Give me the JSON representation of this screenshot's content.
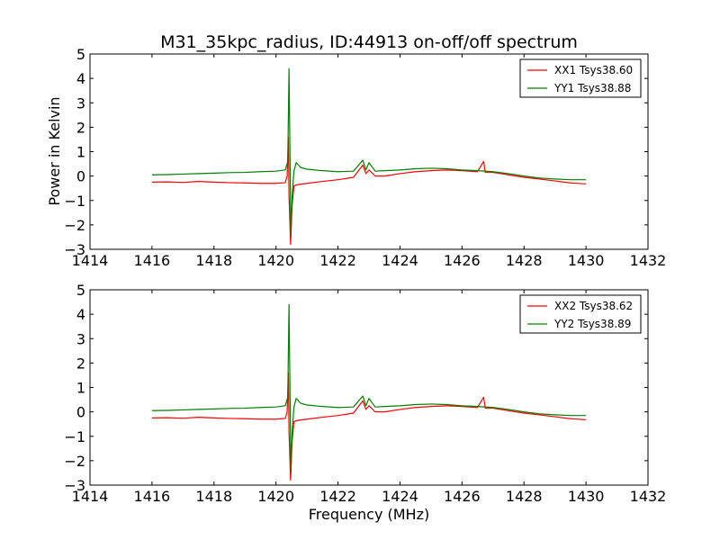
{
  "chart_data": {
    "type": "line",
    "title": "M31_35kpc_radius, ID:44913 on-off/off spectrum",
    "ylabel": "Power in Kelvin",
    "xlabel": "Frequency (MHz)",
    "xlim": [
      1414,
      1432
    ],
    "ylim": [
      -3,
      5
    ],
    "xticks": [
      "1414",
      "1416",
      "1418",
      "1420",
      "1422",
      "1424",
      "1426",
      "1428",
      "1430",
      "1432"
    ],
    "yticks": [
      "−3",
      "−2",
      "−1",
      "0",
      "1",
      "2",
      "3",
      "4",
      "5"
    ],
    "legend_position": "top-right",
    "grid": false,
    "panels": [
      {
        "series": [
          {
            "name": "XX1 Tsys38.60",
            "color": "#ff0000",
            "points": [
              [
                1416.0,
                -0.25
              ],
              [
                1416.5,
                -0.24
              ],
              [
                1417.0,
                -0.26
              ],
              [
                1417.5,
                -0.22
              ],
              [
                1418.0,
                -0.25
              ],
              [
                1418.5,
                -0.27
              ],
              [
                1419.0,
                -0.28
              ],
              [
                1419.5,
                -0.3
              ],
              [
                1420.0,
                -0.3
              ],
              [
                1420.3,
                -0.27
              ],
              [
                1420.36,
                0.0
              ],
              [
                1420.4,
                1.6
              ],
              [
                1420.42,
                -0.8
              ],
              [
                1420.47,
                -2.8
              ],
              [
                1420.52,
                -1.2
              ],
              [
                1420.58,
                -0.4
              ],
              [
                1420.7,
                -0.35
              ],
              [
                1421.0,
                -0.3
              ],
              [
                1421.5,
                -0.22
              ],
              [
                1422.0,
                -0.15
              ],
              [
                1422.5,
                -0.05
              ],
              [
                1422.8,
                0.45
              ],
              [
                1422.9,
                0.1
              ],
              [
                1423.0,
                0.25
              ],
              [
                1423.2,
                0.0
              ],
              [
                1423.5,
                0.0
              ],
              [
                1424.0,
                0.1
              ],
              [
                1424.5,
                0.18
              ],
              [
                1425.0,
                0.22
              ],
              [
                1425.5,
                0.25
              ],
              [
                1426.0,
                0.22
              ],
              [
                1426.5,
                0.18
              ],
              [
                1426.7,
                0.6
              ],
              [
                1426.75,
                0.15
              ],
              [
                1427.0,
                0.15
              ],
              [
                1427.5,
                0.05
              ],
              [
                1428.0,
                -0.05
              ],
              [
                1428.5,
                -0.12
              ],
              [
                1429.0,
                -0.2
              ],
              [
                1429.5,
                -0.28
              ],
              [
                1430.0,
                -0.32
              ]
            ]
          },
          {
            "name": "YY1 Tsys38.88",
            "color": "#008000",
            "points": [
              [
                1416.0,
                0.05
              ],
              [
                1416.5,
                0.06
              ],
              [
                1417.0,
                0.08
              ],
              [
                1417.5,
                0.1
              ],
              [
                1418.0,
                0.12
              ],
              [
                1418.5,
                0.14
              ],
              [
                1419.0,
                0.15
              ],
              [
                1419.5,
                0.18
              ],
              [
                1420.0,
                0.2
              ],
              [
                1420.3,
                0.25
              ],
              [
                1420.38,
                0.6
              ],
              [
                1420.42,
                4.4
              ],
              [
                1420.45,
                1.0
              ],
              [
                1420.48,
                -2.5
              ],
              [
                1420.52,
                -0.8
              ],
              [
                1420.58,
                0.2
              ],
              [
                1420.65,
                0.55
              ],
              [
                1420.8,
                0.35
              ],
              [
                1421.0,
                0.28
              ],
              [
                1421.5,
                0.22
              ],
              [
                1422.0,
                0.18
              ],
              [
                1422.5,
                0.2
              ],
              [
                1422.8,
                0.65
              ],
              [
                1422.9,
                0.25
              ],
              [
                1423.0,
                0.55
              ],
              [
                1423.2,
                0.2
              ],
              [
                1423.5,
                0.22
              ],
              [
                1424.0,
                0.25
              ],
              [
                1424.5,
                0.3
              ],
              [
                1425.0,
                0.32
              ],
              [
                1425.5,
                0.3
              ],
              [
                1426.0,
                0.25
              ],
              [
                1426.5,
                0.22
              ],
              [
                1427.0,
                0.18
              ],
              [
                1427.5,
                0.1
              ],
              [
                1428.0,
                0.0
              ],
              [
                1428.5,
                -0.08
              ],
              [
                1429.0,
                -0.12
              ],
              [
                1429.5,
                -0.15
              ],
              [
                1430.0,
                -0.15
              ]
            ]
          }
        ]
      },
      {
        "series": [
          {
            "name": "XX2 Tsys38.62",
            "color": "#ff0000",
            "points": [
              [
                1416.0,
                -0.25
              ],
              [
                1416.5,
                -0.24
              ],
              [
                1417.0,
                -0.26
              ],
              [
                1417.5,
                -0.22
              ],
              [
                1418.0,
                -0.25
              ],
              [
                1418.5,
                -0.27
              ],
              [
                1419.0,
                -0.28
              ],
              [
                1419.5,
                -0.3
              ],
              [
                1420.0,
                -0.3
              ],
              [
                1420.3,
                -0.27
              ],
              [
                1420.36,
                0.0
              ],
              [
                1420.4,
                1.6
              ],
              [
                1420.42,
                -0.8
              ],
              [
                1420.47,
                -2.8
              ],
              [
                1420.52,
                -1.2
              ],
              [
                1420.58,
                -0.4
              ],
              [
                1420.7,
                -0.35
              ],
              [
                1421.0,
                -0.3
              ],
              [
                1421.5,
                -0.22
              ],
              [
                1422.0,
                -0.15
              ],
              [
                1422.5,
                -0.05
              ],
              [
                1422.8,
                0.45
              ],
              [
                1422.9,
                0.1
              ],
              [
                1423.0,
                0.25
              ],
              [
                1423.2,
                0.0
              ],
              [
                1423.5,
                0.0
              ],
              [
                1424.0,
                0.1
              ],
              [
                1424.5,
                0.18
              ],
              [
                1425.0,
                0.22
              ],
              [
                1425.5,
                0.25
              ],
              [
                1426.0,
                0.22
              ],
              [
                1426.5,
                0.18
              ],
              [
                1426.7,
                0.6
              ],
              [
                1426.75,
                0.15
              ],
              [
                1427.0,
                0.15
              ],
              [
                1427.5,
                0.05
              ],
              [
                1428.0,
                -0.05
              ],
              [
                1428.5,
                -0.12
              ],
              [
                1429.0,
                -0.2
              ],
              [
                1429.5,
                -0.28
              ],
              [
                1430.0,
                -0.32
              ]
            ]
          },
          {
            "name": "YY2 Tsys38.89",
            "color": "#008000",
            "points": [
              [
                1416.0,
                0.05
              ],
              [
                1416.5,
                0.06
              ],
              [
                1417.0,
                0.08
              ],
              [
                1417.5,
                0.1
              ],
              [
                1418.0,
                0.12
              ],
              [
                1418.5,
                0.14
              ],
              [
                1419.0,
                0.15
              ],
              [
                1419.5,
                0.18
              ],
              [
                1420.0,
                0.2
              ],
              [
                1420.3,
                0.25
              ],
              [
                1420.38,
                0.6
              ],
              [
                1420.42,
                4.4
              ],
              [
                1420.45,
                1.0
              ],
              [
                1420.48,
                -2.5
              ],
              [
                1420.52,
                -0.8
              ],
              [
                1420.58,
                0.2
              ],
              [
                1420.65,
                0.55
              ],
              [
                1420.8,
                0.35
              ],
              [
                1421.0,
                0.28
              ],
              [
                1421.5,
                0.22
              ],
              [
                1422.0,
                0.18
              ],
              [
                1422.5,
                0.2
              ],
              [
                1422.8,
                0.65
              ],
              [
                1422.9,
                0.25
              ],
              [
                1423.0,
                0.55
              ],
              [
                1423.2,
                0.2
              ],
              [
                1423.5,
                0.22
              ],
              [
                1424.0,
                0.25
              ],
              [
                1424.5,
                0.3
              ],
              [
                1425.0,
                0.32
              ],
              [
                1425.5,
                0.3
              ],
              [
                1426.0,
                0.25
              ],
              [
                1426.5,
                0.22
              ],
              [
                1427.0,
                0.18
              ],
              [
                1427.5,
                0.1
              ],
              [
                1428.0,
                0.0
              ],
              [
                1428.5,
                -0.08
              ],
              [
                1429.0,
                -0.12
              ],
              [
                1429.5,
                -0.15
              ],
              [
                1430.0,
                -0.15
              ]
            ]
          }
        ]
      }
    ]
  }
}
